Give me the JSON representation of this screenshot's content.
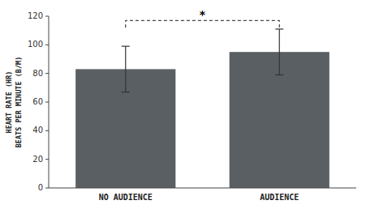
{
  "chart_data": {
    "type": "bar",
    "categories": [
      "NO AUDIENCE",
      "AUDIENCE"
    ],
    "values": [
      83,
      95
    ],
    "errors": [
      16,
      16
    ],
    "color": "#5a5f63",
    "ylabel": "HEART RATE (HR)\nBEATS PER MINUTE (B/M)",
    "ylim": [
      0,
      120
    ],
    "yticks": [
      0,
      20,
      40,
      60,
      80,
      100,
      120
    ],
    "grid": false,
    "annotations": [
      {
        "text": "*",
        "y": 117,
        "drop": 5,
        "from": "NO AUDIENCE",
        "to": "AUDIENCE"
      }
    ]
  }
}
